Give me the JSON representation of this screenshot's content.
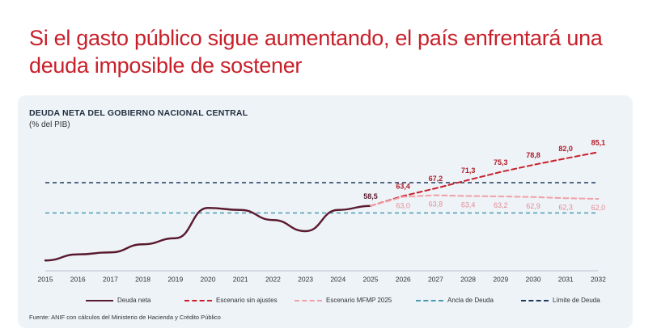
{
  "headline": "Si el gasto público sigue aumentando, el país enfrentará una deuda imposible de sostener",
  "colors": {
    "headline": "#c8202a",
    "deuda_neta": "#5a1a2e",
    "sin_ajustes": "#c8202a",
    "mfmp": "#f0a0a6",
    "ancla": "#4a9bb0",
    "limite": "#1f3a5c",
    "card_bg": "#eef3f8"
  },
  "chart_data": {
    "type": "line",
    "title": "DEUDA NETA DEL GOBIERNO NACIONAL CENTRAL",
    "subtitle": "(% del PIB)",
    "categories": [
      "2015",
      "2016",
      "2017",
      "2018",
      "2019",
      "2020",
      "2021",
      "2022",
      "2023",
      "2024",
      "2025",
      "2026",
      "2027",
      "2028",
      "2029",
      "2030",
      "2031",
      "2032"
    ],
    "ylim": [
      30,
      90
    ],
    "grid": false,
    "legend_position": "bottom",
    "series": [
      {
        "name": "Deuda neta",
        "style": "solid",
        "color_key": "deuda_neta",
        "values": [
          31.5,
          34.5,
          35.5,
          39.5,
          42.5,
          57.5,
          56.5,
          51.5,
          46.0,
          56.5,
          58.5,
          null,
          null,
          null,
          null,
          null,
          null,
          null
        ]
      },
      {
        "name": "Escenario sin ajustes",
        "style": "dashed",
        "color_key": "sin_ajustes",
        "values": [
          null,
          null,
          null,
          null,
          null,
          null,
          null,
          null,
          null,
          null,
          58.5,
          63.4,
          67.2,
          71.3,
          75.3,
          78.8,
          82.0,
          85.1
        ],
        "labels": [
          "58,5",
          "63,4",
          "67,2",
          "71,3",
          "75,3",
          "78,8",
          "82,0",
          "85,1"
        ]
      },
      {
        "name": "Escenario MFMP 2025",
        "style": "dashed",
        "color_key": "mfmp",
        "values": [
          null,
          null,
          null,
          null,
          null,
          null,
          null,
          null,
          null,
          null,
          58.5,
          63.0,
          63.8,
          63.4,
          63.2,
          62.9,
          62.3,
          62.0
        ],
        "labels": [
          "63,0",
          "63,8",
          "63,4",
          "63,2",
          "62,9",
          "62,3",
          "62,0"
        ]
      },
      {
        "name": "Ancla de Deuda",
        "style": "dashed",
        "color_key": "ancla",
        "constant": 55
      },
      {
        "name": "Límite de Deuda",
        "style": "dashed",
        "color_key": "limite",
        "constant": 70
      }
    ],
    "source": "Fuente: ANIF con cálculos del Ministerio de Hacienda y Crédito Público"
  }
}
